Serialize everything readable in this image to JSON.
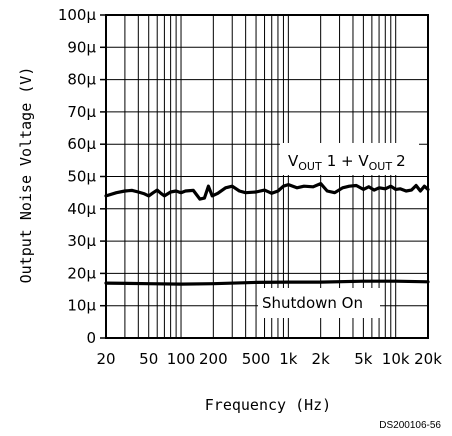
{
  "chart_data": {
    "type": "line",
    "title": "",
    "xlabel": "Frequency (Hz)",
    "ylabel": "Output Noise Voltage (V)",
    "x_scale": "log",
    "xlim": [
      20,
      20000
    ],
    "ylim": [
      0,
      0.0001
    ],
    "x_ticks": [
      {
        "value": 20,
        "label": "20"
      },
      {
        "value": 50,
        "label": "50"
      },
      {
        "value": 100,
        "label": "100"
      },
      {
        "value": 200,
        "label": "200"
      },
      {
        "value": 500,
        "label": "500"
      },
      {
        "value": 1000,
        "label": "1k"
      },
      {
        "value": 2000,
        "label": "2k"
      },
      {
        "value": 5000,
        "label": "5k"
      },
      {
        "value": 10000,
        "label": "10k"
      },
      {
        "value": 20000,
        "label": "20k"
      }
    ],
    "y_ticks": [
      {
        "value": 0,
        "label": "0"
      },
      {
        "value": 1e-05,
        "label": "10µ"
      },
      {
        "value": 2e-05,
        "label": "20µ"
      },
      {
        "value": 3e-05,
        "label": "30µ"
      },
      {
        "value": 4e-05,
        "label": "40µ"
      },
      {
        "value": 5e-05,
        "label": "50µ"
      },
      {
        "value": 6e-05,
        "label": "60µ"
      },
      {
        "value": 7e-05,
        "label": "70µ"
      },
      {
        "value": 8e-05,
        "label": "80µ"
      },
      {
        "value": 9e-05,
        "label": "90µ"
      },
      {
        "value": 0.0001,
        "label": "100µ"
      }
    ],
    "grid": true,
    "series": [
      {
        "annotation": {
          "main": "V",
          "sub1": "OUT",
          "mid": "1 + V",
          "sub2": "OUT",
          "end": "2"
        },
        "points": [
          [
            20,
            4.4e-05
          ],
          [
            25,
            4.5e-05
          ],
          [
            30,
            4.55e-05
          ],
          [
            35,
            4.57e-05
          ],
          [
            40,
            4.52e-05
          ],
          [
            45,
            4.47e-05
          ],
          [
            50,
            4.4e-05
          ],
          [
            55,
            4.5e-05
          ],
          [
            60,
            4.58e-05
          ],
          [
            65,
            4.48e-05
          ],
          [
            70,
            4.4e-05
          ],
          [
            80,
            4.52e-05
          ],
          [
            90,
            4.55e-05
          ],
          [
            100,
            4.5e-05
          ],
          [
            110,
            4.55e-05
          ],
          [
            130,
            4.57e-05
          ],
          [
            150,
            4.3e-05
          ],
          [
            165,
            4.33e-05
          ],
          [
            180,
            4.7e-05
          ],
          [
            195,
            4.4e-05
          ],
          [
            220,
            4.48e-05
          ],
          [
            260,
            4.65e-05
          ],
          [
            300,
            4.7e-05
          ],
          [
            350,
            4.55e-05
          ],
          [
            400,
            4.5e-05
          ],
          [
            500,
            4.52e-05
          ],
          [
            600,
            4.58e-05
          ],
          [
            700,
            4.48e-05
          ],
          [
            800,
            4.55e-05
          ],
          [
            900,
            4.7e-05
          ],
          [
            1000,
            4.75e-05
          ],
          [
            1200,
            4.65e-05
          ],
          [
            1400,
            4.7e-05
          ],
          [
            1700,
            4.68e-05
          ],
          [
            2000,
            4.78e-05
          ],
          [
            2300,
            4.55e-05
          ],
          [
            2700,
            4.5e-05
          ],
          [
            3200,
            4.65e-05
          ],
          [
            3700,
            4.7e-05
          ],
          [
            4300,
            4.72e-05
          ],
          [
            5000,
            4.6e-05
          ],
          [
            5600,
            4.68e-05
          ],
          [
            6300,
            4.58e-05
          ],
          [
            7000,
            4.65e-05
          ],
          [
            8000,
            4.62e-05
          ],
          [
            9000,
            4.7e-05
          ],
          [
            10000,
            4.6e-05
          ],
          [
            11000,
            4.62e-05
          ],
          [
            12500,
            4.55e-05
          ],
          [
            14000,
            4.58e-05
          ],
          [
            15500,
            4.72e-05
          ],
          [
            17000,
            4.55e-05
          ],
          [
            18500,
            4.7e-05
          ],
          [
            20000,
            4.6e-05
          ]
        ]
      },
      {
        "annotation": {
          "main": "Shutdown On"
        },
        "points": [
          [
            20,
            1.7e-05
          ],
          [
            50,
            1.68e-05
          ],
          [
            100,
            1.67e-05
          ],
          [
            200,
            1.68e-05
          ],
          [
            500,
            1.72e-05
          ],
          [
            1000,
            1.73e-05
          ],
          [
            2000,
            1.73e-05
          ],
          [
            5000,
            1.76e-05
          ],
          [
            10000,
            1.76e-05
          ],
          [
            20000,
            1.74e-05
          ]
        ]
      }
    ]
  },
  "footer_code": "DS200106-56"
}
